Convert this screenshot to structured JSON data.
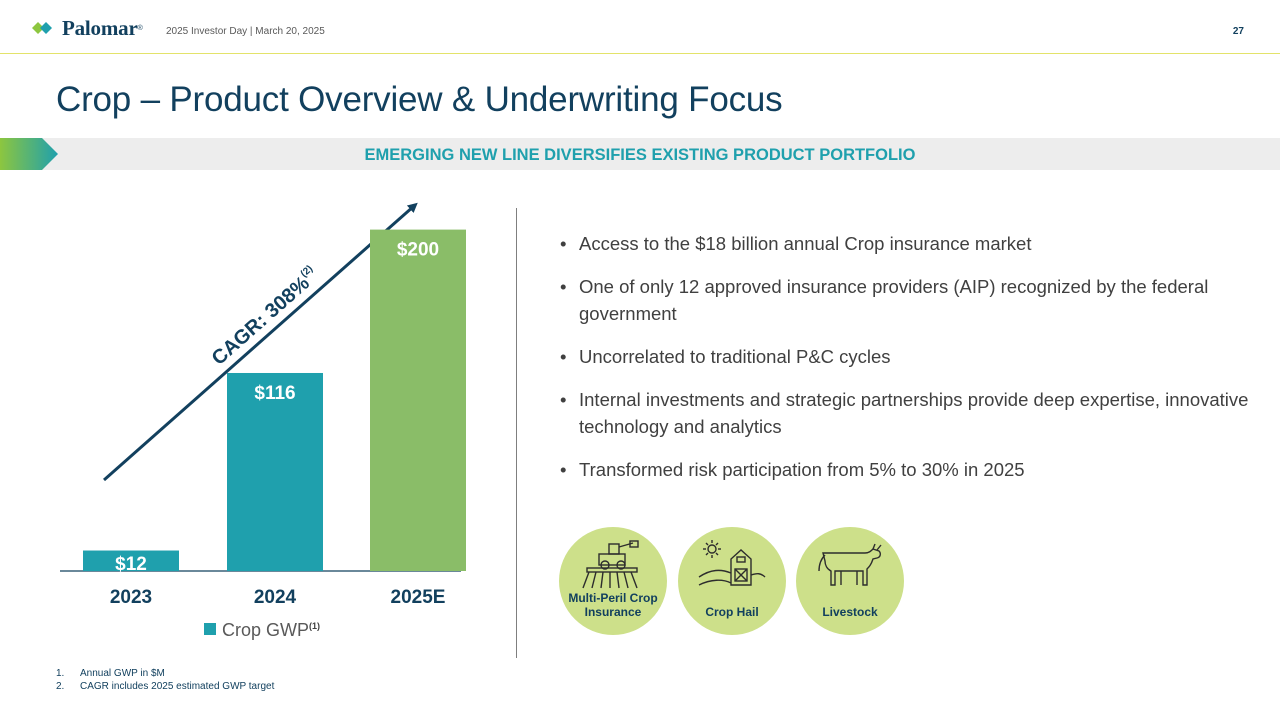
{
  "header": {
    "logo_text": "Palomar",
    "logo_reg": "®",
    "event": "2025 Investor Day | March 20, 2025",
    "page_number": "27"
  },
  "title": "Crop – Product Overview & Underwriting Focus",
  "banner": "EMERGING NEW LINE DIVERSIFIES EXISTING PRODUCT PORTFOLIO",
  "colors": {
    "navy": "#12405e",
    "teal": "#1fa0ad",
    "green": "#8abd68",
    "light_green": "#cde08a",
    "banner_bg": "#ededed"
  },
  "chart_data": {
    "type": "bar",
    "categories": [
      "2023",
      "2024",
      "2025E"
    ],
    "series": [
      {
        "name": "Crop GWP",
        "values": [
          12,
          116,
          200
        ],
        "colors": [
          "#1fa0ad",
          "#1fa0ad",
          "#8abd68"
        ]
      }
    ],
    "data_labels": [
      "$12",
      "$116",
      "$200"
    ],
    "legend_label": "Crop GWP",
    "legend_sup": "(1)",
    "legend_position": "bottom",
    "annotation": "CAGR: 308%",
    "annotation_sup": "(2)",
    "ylim": [
      0,
      215
    ],
    "grid": false
  },
  "bullets": [
    "Access to the $18 billion annual Crop insurance market",
    "One of only 12 approved insurance providers (AIP) recognized by the federal government",
    "Uncorrelated to traditional P&C cycles",
    "Internal investments and strategic partnerships provide deep expertise, innovative technology and analytics",
    "Transformed risk participation from 5% to 30% in 2025"
  ],
  "products": [
    {
      "label": "Multi-Peril Crop Insurance",
      "icon": "combine-harvester-icon"
    },
    {
      "label": "Crop Hail",
      "icon": "barn-hail-icon"
    },
    {
      "label": "Livestock",
      "icon": "cow-icon"
    }
  ],
  "footnotes": [
    {
      "num": "1.",
      "text": "Annual GWP in $M"
    },
    {
      "num": "2.",
      "text": "CAGR includes 2025 estimated GWP target"
    }
  ]
}
